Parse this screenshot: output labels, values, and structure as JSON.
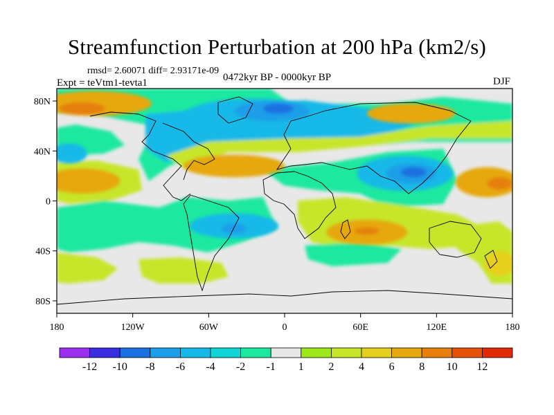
{
  "chart_data": {
    "type": "heatmap",
    "title": "Streamfunction Perturbation at 200 hPa (km2/s)",
    "stats": "rmsd= 2.60071 diff= 2.93171e-09",
    "experiment": "Expt = teVtm1-tevta1",
    "period": "0472kyr BP - 0000kyr BP",
    "season": "DJF",
    "xlim": [
      -180,
      180
    ],
    "ylim": [
      -90,
      90
    ],
    "x_ticks": [
      {
        "value": -180,
        "label": "180"
      },
      {
        "value": -120,
        "label": "120W"
      },
      {
        "value": -60,
        "label": "60W"
      },
      {
        "value": 0,
        "label": "0"
      },
      {
        "value": 60,
        "label": "60E"
      },
      {
        "value": 120,
        "label": "120E"
      },
      {
        "value": 180,
        "label": "180"
      }
    ],
    "y_ticks": [
      {
        "value": 80,
        "label": "80N"
      },
      {
        "value": 40,
        "label": "40N"
      },
      {
        "value": 0,
        "label": "0"
      },
      {
        "value": -40,
        "label": "40S"
      },
      {
        "value": -80,
        "label": "80S"
      }
    ],
    "colorbar": {
      "colors": [
        "#9b2fee",
        "#3a2de0",
        "#1c6fe0",
        "#1d9ee8",
        "#14b9e8",
        "#11d4d6",
        "#1ee8a0",
        "#e8e8e8",
        "#9ee81c",
        "#c7e62a",
        "#e6d01f",
        "#e6a80f",
        "#e67f0c",
        "#e4520a",
        "#e02a0a"
      ],
      "labels": [
        "-12",
        "-10",
        "-8",
        "-6",
        "-4",
        "-2",
        "-1",
        "1",
        "2",
        "4",
        "6",
        "8",
        "10",
        "12"
      ]
    },
    "regions": [
      {
        "level": -4,
        "lon": -25,
        "lat": 68,
        "rx": 55,
        "ry": 14
      },
      {
        "level": -6,
        "lon": -10,
        "lat": 72,
        "rx": 30,
        "ry": 8
      },
      {
        "level": -8,
        "lon": -5,
        "lat": 74,
        "rx": 12,
        "ry": 4
      },
      {
        "level": -4,
        "lon": 95,
        "lat": 22,
        "rx": 38,
        "ry": 14
      },
      {
        "level": -6,
        "lon": 100,
        "lat": 22,
        "rx": 20,
        "ry": 8
      },
      {
        "level": -8,
        "lon": 102,
        "lat": 23,
        "rx": 10,
        "ry": 4
      },
      {
        "level": -4,
        "lon": -170,
        "lat": 38,
        "rx": 14,
        "ry": 8
      },
      {
        "level": -4,
        "lon": -40,
        "lat": -20,
        "rx": 35,
        "ry": 10
      },
      {
        "level": -6,
        "lon": -40,
        "lat": -22,
        "rx": 10,
        "ry": 4
      },
      {
        "level": 6,
        "lon": -150,
        "lat": 78,
        "rx": 45,
        "ry": 10
      },
      {
        "level": 8,
        "lon": -160,
        "lat": 74,
        "rx": 18,
        "ry": 5
      },
      {
        "level": 6,
        "lon": -160,
        "lat": 16,
        "rx": 30,
        "ry": 10
      },
      {
        "level": 6,
        "lon": -40,
        "lat": 28,
        "rx": 40,
        "ry": 9
      },
      {
        "level": 6,
        "lon": 65,
        "lat": -25,
        "rx": 32,
        "ry": 10
      },
      {
        "level": 8,
        "lon": 65,
        "lat": -24,
        "rx": 10,
        "ry": 3
      },
      {
        "level": 6,
        "lon": 160,
        "lat": 15,
        "rx": 25,
        "ry": 12
      },
      {
        "level": 8,
        "lon": 170,
        "lat": 14,
        "rx": 10,
        "ry": 5
      },
      {
        "level": 6,
        "lon": 100,
        "lat": 70,
        "rx": 35,
        "ry": 8
      },
      {
        "level": 4,
        "lon": 170,
        "lat": -50,
        "rx": 12,
        "ry": 10
      }
    ]
  }
}
